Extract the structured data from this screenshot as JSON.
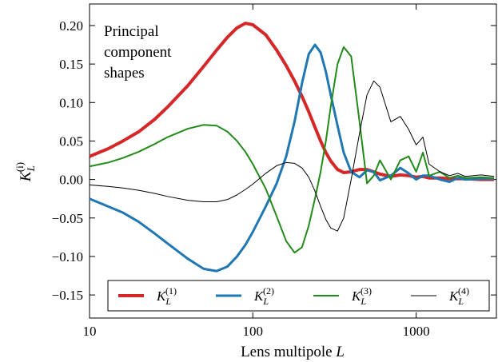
{
  "chart_data": {
    "type": "line",
    "annotation": [
      "Principal",
      "component",
      "shapes"
    ],
    "x_label": {
      "text": "Lens multipole",
      "var": "L"
    },
    "y_label": {
      "base": "K",
      "sub": "L",
      "sup": "(i)"
    },
    "x": [
      10,
      13,
      16,
      20,
      25,
      30,
      40,
      50,
      60,
      70,
      80,
      90,
      100,
      120,
      140,
      160,
      180,
      200,
      220,
      240,
      260,
      280,
      300,
      330,
      360,
      400,
      450,
      500,
      550,
      600,
      700,
      800,
      900,
      1000,
      1100,
      1200,
      1400,
      1600,
      1800,
      2000,
      2500,
      3000
    ],
    "series": [
      {
        "name": "K",
        "sub": "L",
        "sup": "(1)",
        "color": "#d62728",
        "width": 4,
        "values": [
          0.03,
          0.04,
          0.05,
          0.062,
          0.078,
          0.094,
          0.122,
          0.147,
          0.168,
          0.185,
          0.197,
          0.203,
          0.201,
          0.188,
          0.168,
          0.148,
          0.128,
          0.108,
          0.088,
          0.068,
          0.05,
          0.035,
          0.024,
          0.013,
          0.009,
          0.01,
          0.013,
          0.013,
          0.01,
          0.007,
          0.004,
          0.006,
          0.005,
          0.003,
          0.004,
          0.002,
          0.002,
          0.001,
          0.001,
          0.001,
          0.0,
          0.0
        ]
      },
      {
        "name": "K",
        "sub": "L",
        "sup": "(2)",
        "color": "#1f77b4",
        "width": 3,
        "values": [
          -0.025,
          -0.035,
          -0.043,
          -0.055,
          -0.07,
          -0.083,
          -0.103,
          -0.116,
          -0.119,
          -0.113,
          -0.1,
          -0.085,
          -0.068,
          -0.035,
          -0.005,
          0.03,
          0.075,
          0.125,
          0.163,
          0.175,
          0.165,
          0.14,
          0.11,
          0.07,
          0.035,
          0.01,
          0.003,
          0.012,
          0.01,
          -0.001,
          0.005,
          0.015,
          0.008,
          0.0,
          0.005,
          0.005,
          0.0,
          -0.003,
          0.002,
          0.0,
          0.001,
          0.001
        ]
      },
      {
        "name": "K",
        "sub": "L",
        "sup": "(3)",
        "color": "#238b19",
        "width": 2,
        "values": [
          0.017,
          0.022,
          0.028,
          0.036,
          0.046,
          0.055,
          0.066,
          0.071,
          0.07,
          0.062,
          0.05,
          0.036,
          0.02,
          -0.012,
          -0.048,
          -0.08,
          -0.095,
          -0.088,
          -0.06,
          -0.025,
          0.01,
          0.05,
          0.095,
          0.15,
          0.172,
          0.16,
          0.075,
          -0.005,
          0.005,
          0.025,
          0.0,
          0.025,
          0.03,
          0.01,
          0.035,
          0.005,
          0.01,
          0.002,
          0.005,
          0.002,
          0.003,
          0.002
        ]
      },
      {
        "name": "K",
        "sub": "L",
        "sup": "(4)",
        "color": "#000000",
        "width": 1,
        "values": [
          -0.007,
          -0.009,
          -0.011,
          -0.014,
          -0.018,
          -0.022,
          -0.027,
          -0.029,
          -0.029,
          -0.026,
          -0.02,
          -0.013,
          -0.006,
          0.008,
          0.018,
          0.022,
          0.021,
          0.015,
          0.003,
          -0.015,
          -0.035,
          -0.052,
          -0.063,
          -0.067,
          -0.05,
          0.0,
          0.06,
          0.11,
          0.128,
          0.12,
          0.075,
          0.082,
          0.065,
          0.045,
          0.055,
          0.02,
          0.01,
          0.005,
          0.008,
          0.004,
          0.006,
          0.004
        ]
      }
    ],
    "xlim": [
      10,
      3100
    ],
    "x_log": true,
    "xticks": [
      10,
      100,
      1000
    ],
    "ylim": [
      -0.18,
      0.228
    ],
    "yticks": [
      {
        "value": -0.15,
        "label": "−0.15"
      },
      {
        "value": -0.1,
        "label": "−0.10"
      },
      {
        "value": -0.05,
        "label": "−0.05"
      },
      {
        "value": 0.0,
        "label": "0.00"
      },
      {
        "value": 0.05,
        "label": "0.05"
      },
      {
        "value": 0.1,
        "label": "0.10"
      },
      {
        "value": 0.15,
        "label": "0.15"
      },
      {
        "value": 0.2,
        "label": "0.20"
      }
    ],
    "legend": "lower center"
  }
}
